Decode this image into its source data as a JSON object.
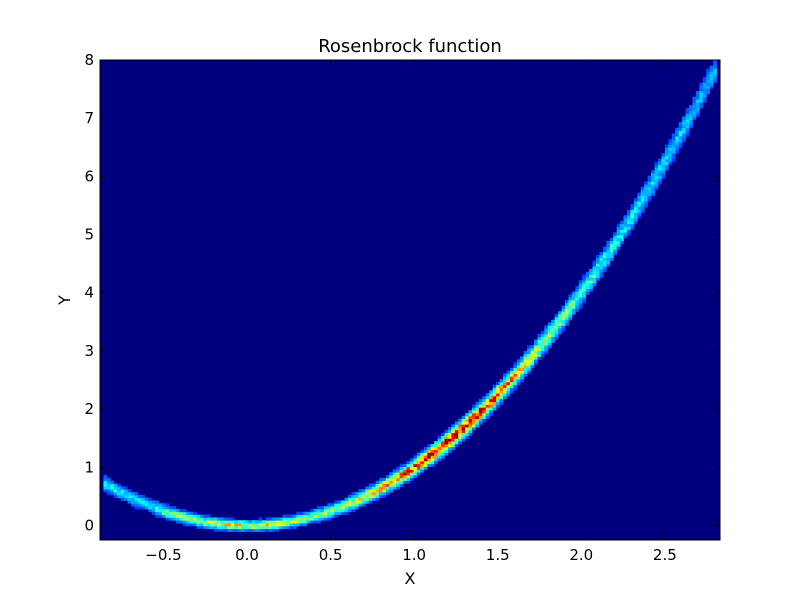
{
  "chart_data": {
    "type": "heatmap",
    "title": "Rosenbrock function",
    "xlabel": "X",
    "ylabel": "Y",
    "xlim": [
      -0.88,
      2.83
    ],
    "ylim": [
      -0.25,
      8.0
    ],
    "x_ticks": [
      -0.5,
      0.0,
      0.5,
      1.0,
      1.5,
      2.0,
      2.5
    ],
    "x_tick_labels": [
      "−0.5",
      "0.0",
      "0.5",
      "1.0",
      "1.5",
      "2.0",
      "2.5"
    ],
    "y_ticks": [
      0,
      1,
      2,
      3,
      4,
      5,
      6,
      7,
      8
    ],
    "y_tick_labels": [
      "0",
      "1",
      "2",
      "3",
      "4",
      "5",
      "6",
      "7",
      "8"
    ],
    "grid": false,
    "colormap": "jet",
    "background_color": "#00007f",
    "density_ridge": {
      "description_of_curve": "y = x^2",
      "x_range": [
        -0.85,
        2.8
      ],
      "peak_density_x": 1.2,
      "peak_density_y": 1.45
    }
  }
}
